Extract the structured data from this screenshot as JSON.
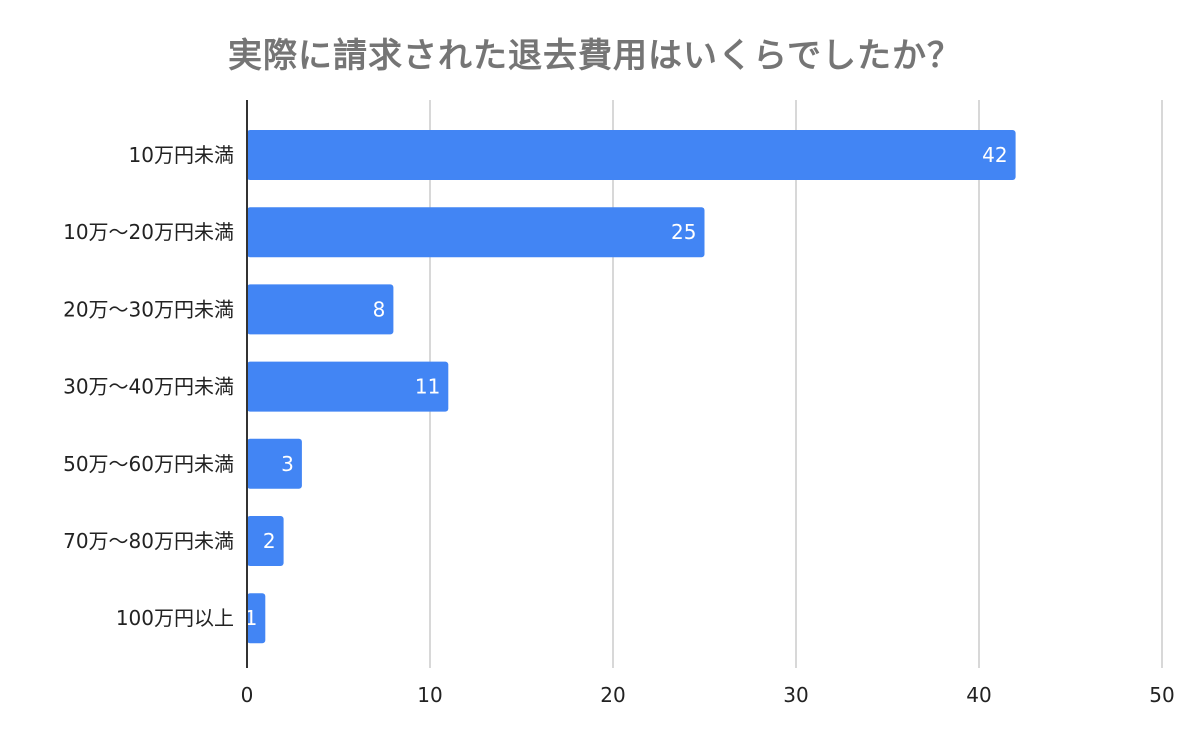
{
  "chart_data": {
    "type": "bar",
    "orientation": "horizontal",
    "title": "実際に請求された退去費用はいくらでしたか？",
    "categories": [
      "10万円未満",
      "10万～20万円未満",
      "20万～30万円未満",
      "30万～40万円未満",
      "50万～60万円未満",
      "70万～80万円未満",
      "100万円以上"
    ],
    "values": [
      42,
      25,
      8,
      11,
      3,
      2,
      1
    ],
    "xlim": [
      0,
      50
    ],
    "xticks": [
      0,
      10,
      20,
      30,
      40,
      50
    ],
    "grid": "vertical",
    "legend": "none",
    "bar_color": "#4285f4",
    "grid_color": "#cccccc",
    "axis_color": "#333333",
    "data_label_color": "#ffffff"
  }
}
